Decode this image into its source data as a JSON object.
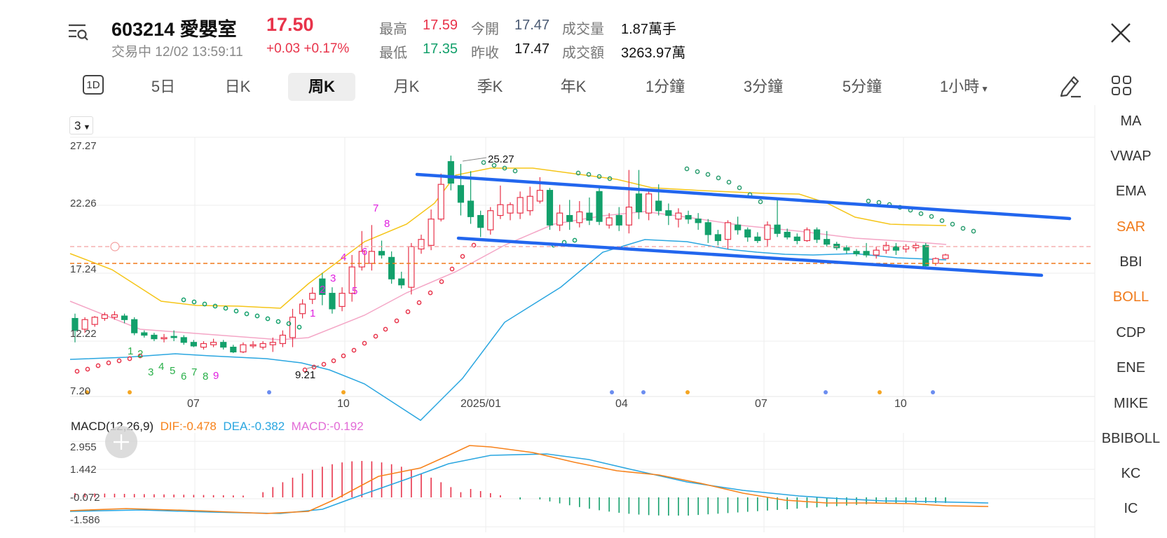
{
  "header": {
    "code_name": "603214  愛嬰室",
    "price": "17.50",
    "status": "交易中 12/02 13:59:11",
    "change": "+0.03  +0.17%",
    "quotes": [
      {
        "label": "最高",
        "value": "17.59",
        "color": "#e8334a"
      },
      {
        "label": "今開",
        "value": "17.47",
        "color": "#4a5a73"
      },
      {
        "label": "成交量",
        "value": "1.87萬手",
        "color": "#111111"
      },
      {
        "label": "最低",
        "value": "17.35",
        "color": "#13a06b"
      },
      {
        "label": "昨收",
        "value": "17.47",
        "color": "#111111"
      },
      {
        "label": "成交額",
        "value": "3263.97萬",
        "color": "#111111"
      }
    ]
  },
  "tabs": [
    {
      "label": "1D"
    },
    {
      "label": "5日"
    },
    {
      "label": "日K"
    },
    {
      "label": "周K"
    },
    {
      "label": "月K"
    },
    {
      "label": "季K"
    },
    {
      "label": "年K"
    },
    {
      "label": "1分鐘"
    },
    {
      "label": "3分鐘"
    },
    {
      "label": "5分鐘"
    },
    {
      "label": "1小時"
    }
  ],
  "active_tab": "周K",
  "period_select": "3",
  "chart": {
    "y_ticks": [
      "27.27",
      "22.26",
      "17.24",
      "12.22",
      "7.20"
    ],
    "x_ticks": [
      "07",
      "10",
      "2025/01",
      "04",
      "07",
      "10"
    ],
    "high_annot": "25.27",
    "low_annot": "9.21",
    "last_price_line": "17.50",
    "td_up": [
      "1",
      "2",
      "3",
      "4",
      "5",
      "6",
      "7",
      "8"
    ],
    "td_down": [
      "1",
      "2",
      "3",
      "4",
      "5",
      "6",
      "7",
      "8",
      "9"
    ]
  },
  "macd": {
    "name": "MACD(12,26,9)",
    "dif": "DIF:-0.478",
    "dea": "DEA:-0.382",
    "macd": "MACD:-0.192",
    "y_ticks": [
      "2.955",
      "1.442",
      "-0.072",
      "-1.586"
    ]
  },
  "indicators": [
    {
      "label": "MA",
      "active": false
    },
    {
      "label": "VWAP",
      "active": false
    },
    {
      "label": "EMA",
      "active": false
    },
    {
      "label": "SAR",
      "active": true
    },
    {
      "label": "BBI",
      "active": false
    },
    {
      "label": "BOLL",
      "active": true
    },
    {
      "label": "CDP",
      "active": false
    },
    {
      "label": "ENE",
      "active": false
    },
    {
      "label": "MIKE",
      "active": false
    },
    {
      "label": "BBIBOLL",
      "active": false
    },
    {
      "label": "KC",
      "active": false
    },
    {
      "label": "IC",
      "active": false
    }
  ],
  "colors": {
    "up": "#e8334a",
    "down": "#13a06b",
    "boll_upper": "#f5c518",
    "boll_mid": "#f4a6c6",
    "boll_lower": "#2aa6e0",
    "trend": "#2266ee",
    "dif": "#f7821b",
    "dea": "#2aa6e0",
    "macd": "#e26bd6",
    "sar": "#e8334a",
    "active_indicator": "#f07a1a"
  }
}
